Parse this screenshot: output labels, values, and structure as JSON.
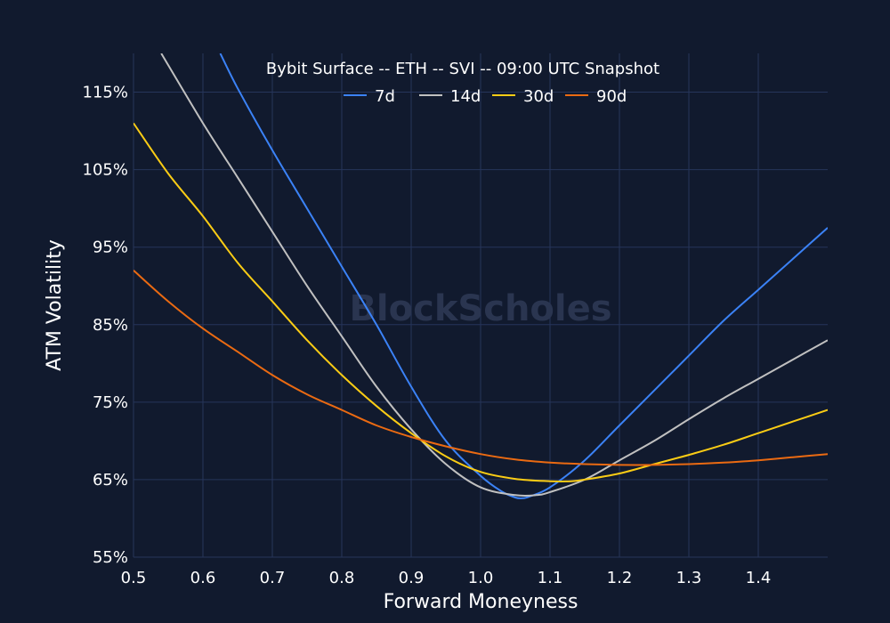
{
  "chart_data": {
    "type": "line",
    "title": "Bybit Surface -- ETH -- SVI -- 09:00 UTC Snapshot",
    "xlabel": "Forward Moneyness",
    "ylabel": "ATM Volatility",
    "xlim": [
      0.5,
      1.5
    ],
    "ylim": [
      55,
      120
    ],
    "x_ticks": [
      0.5,
      0.6,
      0.7,
      0.8,
      0.9,
      1.0,
      1.1,
      1.2,
      1.3,
      1.4
    ],
    "x_tick_labels": [
      "0.5",
      "0.6",
      "0.7",
      "0.8",
      "0.9",
      "1.0",
      "1.1",
      "1.2",
      "1.3",
      "1.4"
    ],
    "y_ticks": [
      55,
      65,
      75,
      85,
      95,
      105,
      115
    ],
    "y_tick_labels": [
      "55%",
      "65%",
      "75%",
      "85%",
      "95%",
      "105%",
      "115%"
    ],
    "grid": true,
    "legend_position": "top-center",
    "watermark": "BlockScholes",
    "series": [
      {
        "name": "7d",
        "color": "#3b82f6",
        "x": [
          0.625,
          0.65,
          0.7,
          0.75,
          0.8,
          0.85,
          0.9,
          0.95,
          1.0,
          1.03,
          1.05,
          1.06,
          1.07,
          1.1,
          1.15,
          1.2,
          1.25,
          1.3,
          1.35,
          1.4,
          1.45,
          1.5
        ],
        "y": [
          120.0,
          115.5,
          107.5,
          100.0,
          92.5,
          85.0,
          77.0,
          70.0,
          65.5,
          63.5,
          62.7,
          62.6,
          62.8,
          64.0,
          67.5,
          72.0,
          76.5,
          81.0,
          85.5,
          89.5,
          93.5,
          97.5
        ]
      },
      {
        "name": "14d",
        "color": "#c0c0c0",
        "x": [
          0.54,
          0.6,
          0.65,
          0.7,
          0.75,
          0.8,
          0.85,
          0.9,
          0.95,
          1.0,
          1.05,
          1.08,
          1.1,
          1.15,
          1.2,
          1.25,
          1.3,
          1.35,
          1.4,
          1.45,
          1.5
        ],
        "y": [
          120.0,
          111.0,
          104.0,
          97.0,
          90.0,
          83.5,
          77.0,
          71.5,
          67.0,
          64.0,
          63.0,
          63.0,
          63.4,
          65.0,
          67.5,
          70.0,
          72.8,
          75.5,
          78.0,
          80.5,
          83.0
        ]
      },
      {
        "name": "30d",
        "color": "#facc15",
        "x": [
          0.5,
          0.55,
          0.6,
          0.65,
          0.7,
          0.75,
          0.8,
          0.85,
          0.9,
          0.95,
          1.0,
          1.05,
          1.1,
          1.13,
          1.15,
          1.2,
          1.25,
          1.3,
          1.35,
          1.4,
          1.45,
          1.5
        ],
        "y": [
          111.0,
          104.5,
          99.0,
          93.0,
          88.0,
          83.0,
          78.5,
          74.5,
          71.0,
          68.0,
          66.0,
          65.1,
          64.8,
          64.8,
          65.0,
          65.8,
          67.0,
          68.2,
          69.5,
          71.0,
          72.5,
          74.0
        ]
      },
      {
        "name": "90d",
        "color": "#ea6a12",
        "x": [
          0.5,
          0.55,
          0.6,
          0.65,
          0.7,
          0.75,
          0.8,
          0.85,
          0.9,
          0.95,
          1.0,
          1.05,
          1.1,
          1.15,
          1.2,
          1.25,
          1.3,
          1.35,
          1.4,
          1.45,
          1.5
        ],
        "y": [
          92.0,
          88.0,
          84.5,
          81.5,
          78.5,
          76.0,
          74.0,
          72.0,
          70.5,
          69.3,
          68.3,
          67.6,
          67.2,
          67.0,
          66.9,
          66.9,
          67.0,
          67.2,
          67.5,
          67.9,
          68.3
        ]
      }
    ]
  }
}
